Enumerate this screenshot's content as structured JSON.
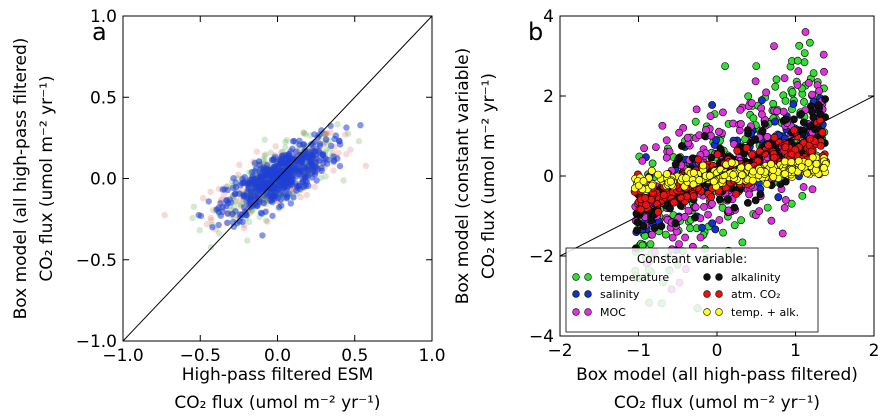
{
  "chart_data": [
    {
      "type": "scatter",
      "panel_label": "a",
      "xlabel_line1": "High-pass filtered ESM",
      "xlabel_line2": "CO₂ flux (umol m⁻² yr⁻¹)",
      "ylabel_line1": "Box model (all high-pass filtered)",
      "ylabel_line2": "CO₂ flux (umol m⁻² yr⁻¹)",
      "xlim": [
        -1.0,
        1.0
      ],
      "ylim": [
        -1.0,
        1.0
      ],
      "xticks": [
        "−1.0",
        "−0.5",
        "0.0",
        "0.5",
        "1.0"
      ],
      "yticks": [
        "−1.0",
        "−0.5",
        "0.0",
        "0.5",
        "1.0"
      ],
      "xtick_values": [
        -1.0,
        -0.5,
        0.0,
        0.5,
        1.0
      ],
      "ytick_values": [
        -1.0,
        -0.5,
        0.0,
        0.5,
        1.0
      ],
      "one_to_one_line": [
        [
          -1.0,
          -1.0
        ],
        [
          1.0,
          1.0
        ]
      ],
      "series": [
        {
          "color": "#d9534f",
          "slope": 0.45,
          "sx": 0.21,
          "sy": 0.09,
          "n": 220
        },
        {
          "color": "#2ca02c",
          "slope": 0.48,
          "sx": 0.19,
          "sy": 0.085,
          "n": 260
        },
        {
          "color": "#1f3fd6",
          "slope": 0.5,
          "sx": 0.17,
          "sy": 0.075,
          "n": 520
        }
      ]
    },
    {
      "type": "scatter",
      "panel_label": "b",
      "xlabel_line1": "Box model (all high-pass filtered)",
      "xlabel_line2": "CO₂ flux (umol m⁻² yr⁻¹)",
      "ylabel_line1": "Box model (constant variable)",
      "ylabel_line2": "CO₂ flux (umol m⁻² yr⁻¹)",
      "xlim": [
        -2,
        2
      ],
      "ylim": [
        -4,
        4
      ],
      "xticks": [
        "−2",
        "−1",
        "0",
        "1",
        "2"
      ],
      "yticks": [
        "−4",
        "−2",
        "0",
        "2",
        "4"
      ],
      "xtick_values": [
        -2,
        -1,
        0,
        1,
        2
      ],
      "ytick_values": [
        -4,
        -2,
        0,
        2,
        4
      ],
      "one_to_one_line": [
        [
          -2,
          -2
        ],
        [
          2,
          2
        ]
      ],
      "legend_title": "Constant variable:",
      "legend_position": "lower-right",
      "series": [
        {
          "name": "temperature",
          "color": "#33dd33",
          "slope": 1.3,
          "sy": 0.95,
          "n": 230
        },
        {
          "name": "salinity",
          "color": "#1133cc",
          "slope": 1.0,
          "sy": 0.55,
          "n": 140
        },
        {
          "name": "MOC",
          "color": "#dd33dd",
          "slope": 1.0,
          "sy": 0.85,
          "n": 260
        },
        {
          "name": "alkalinity",
          "color": "#111111",
          "slope": 0.75,
          "sy": 0.4,
          "n": 200
        },
        {
          "name": "atm. CO₂",
          "color": "#ee1111",
          "slope": 0.55,
          "sy": 0.25,
          "n": 220
        },
        {
          "name": "temp. + alk.",
          "color": "#ffff22",
          "slope": 0.2,
          "sy": 0.12,
          "n": 220
        }
      ]
    }
  ]
}
